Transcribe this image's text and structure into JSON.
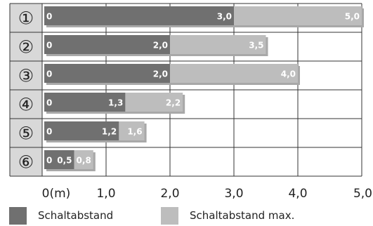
{
  "chart_data": {
    "type": "bar",
    "orientation": "horizontal",
    "stacked": "overlay",
    "categories": [
      "①",
      "②",
      "③",
      "④",
      "⑤",
      "⑥"
    ],
    "series": [
      {
        "name": "Schaltabstand",
        "values": [
          3.0,
          2.0,
          2.0,
          1.3,
          1.2,
          0.5
        ],
        "labels": [
          "3,0",
          "2,0",
          "2,0",
          "1,3",
          "1,2",
          "0,5"
        ]
      },
      {
        "name": "Schaltabstand max.",
        "values": [
          5.0,
          3.5,
          4.0,
          2.2,
          1.6,
          0.8
        ],
        "labels": [
          "5,0",
          "3,5",
          "4,0",
          "2,2",
          "1,6",
          "0,8"
        ]
      }
    ],
    "start_label": "0",
    "x_ticks": [
      {
        "value": 0,
        "label": "0(m)"
      },
      {
        "value": 1,
        "label": "1,0"
      },
      {
        "value": 2,
        "label": "2,0"
      },
      {
        "value": 3,
        "label": "3,0"
      },
      {
        "value": 4,
        "label": "4,0"
      },
      {
        "value": 5,
        "label": "5,0"
      }
    ],
    "xlim": [
      0,
      5
    ],
    "grid": true,
    "legend_position": "bottom",
    "colors": {
      "primary": "#707070",
      "max": "#bdbdbd",
      "shadow": "#a8a8a8",
      "label_col_bg": "#d8d8d8",
      "text": "#222222"
    }
  }
}
